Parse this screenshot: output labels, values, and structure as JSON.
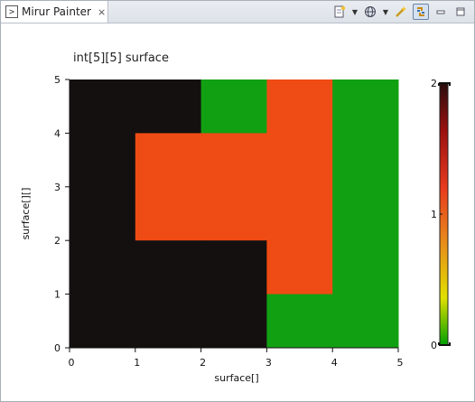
{
  "tab": {
    "title": "Mirur Painter",
    "icon": "bracket-view-icon",
    "close_label": "⨯"
  },
  "toolbar": {
    "buttons": [
      "new-document-icon",
      "globe-icon",
      "wand-icon",
      "link-icon",
      "minimize-icon",
      "maximize-icon"
    ]
  },
  "chart_data": {
    "type": "heatmap",
    "title": "int[5][5] surface",
    "xlabel": "surface[]",
    "ylabel": "surface[][]",
    "xlim": [
      0,
      5
    ],
    "ylim": [
      0,
      5
    ],
    "x_ticks": [
      "0",
      "1",
      "2",
      "3",
      "4",
      "5"
    ],
    "y_ticks": [
      "0",
      "1",
      "2",
      "3",
      "4",
      "5"
    ],
    "colorbar": {
      "ticks": [
        "0",
        "1",
        "2"
      ],
      "range": [
        0,
        2
      ],
      "colors": [
        "#00a000",
        "#e0e000",
        "#e8701a",
        "#e03020",
        "#2a0d0d"
      ]
    },
    "values": [
      [
        2,
        2,
        0,
        1,
        0
      ],
      [
        2,
        1,
        1,
        1,
        0
      ],
      [
        2,
        1,
        1,
        1,
        0
      ],
      [
        2,
        2,
        2,
        1,
        0
      ],
      [
        2,
        2,
        2,
        0,
        0
      ]
    ],
    "cell_colors": {
      "0": "#12a013",
      "1": "#ef4b14",
      "2": "#141010"
    }
  }
}
